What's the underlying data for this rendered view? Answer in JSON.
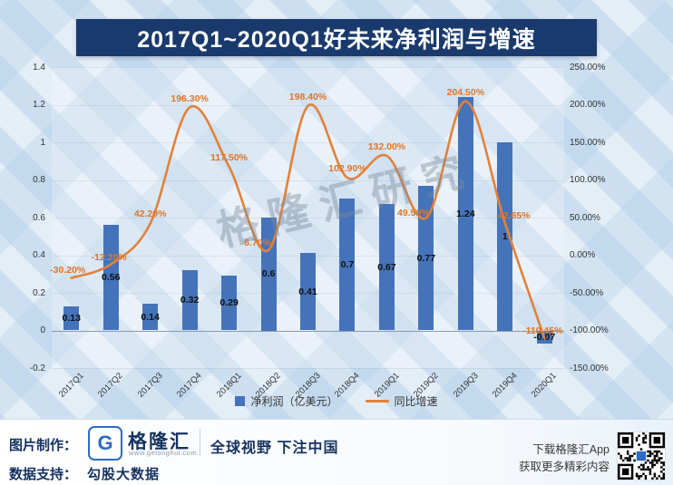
{
  "title": "2017Q1~2020Q1好未来净利润与增速",
  "watermark": "格隆汇研究",
  "chart_data": {
    "type": "combo",
    "categories": [
      "2017Q1",
      "2017Q2",
      "2017Q3",
      "2017Q4",
      "2018Q1",
      "2018Q2",
      "2018Q3",
      "2018Q4",
      "2019Q1",
      "2019Q2",
      "2019Q3",
      "2019Q4",
      "2020Q1"
    ],
    "series": [
      {
        "name": "净利润（亿美元）",
        "type": "bar",
        "axis": "left",
        "color": "#4573b9",
        "values": [
          0.13,
          0.56,
          0.14,
          0.32,
          0.29,
          0.6,
          0.41,
          0.7,
          0.67,
          0.77,
          1.24,
          1,
          -0.07
        ],
        "labels": [
          "0.13",
          "0.56",
          "0.14",
          "0.32",
          "0.29",
          "0.6",
          "0.41",
          "0.7",
          "0.67",
          "0.77",
          "1.24",
          "1",
          "-0.07"
        ]
      },
      {
        "name": "同比增速",
        "type": "line",
        "axis": "right",
        "color": "#e2813a",
        "values": [
          -30.2,
          -12.2,
          42.2,
          196.3,
          117.5,
          6.7,
          198.4,
          102.9,
          132.0,
          49.5,
          204.5,
          42.65,
          -110.45
        ],
        "labels": [
          "-30.20%",
          "-12.20%",
          "42.20%",
          "196.30%",
          "117.50%",
          "6.70%",
          "198.40%",
          "102.90%",
          "132.00%",
          "49.50%",
          "204.50%",
          "42.65%",
          "-110.45%"
        ]
      }
    ],
    "left_axis": {
      "min": -0.2,
      "max": 1.4,
      "ticks": [
        "1.4",
        "1.2",
        "1",
        "0.8",
        "0.6",
        "0.4",
        "0.2",
        "0",
        "-0.2"
      ]
    },
    "right_axis": {
      "min": -150,
      "max": 250,
      "ticks": [
        "250.00%",
        "200.00%",
        "150.00%",
        "100.00%",
        "50.00%",
        "0.00%",
        "-50.00%",
        "-100.00%",
        "-150.00%"
      ]
    },
    "legend_position": "bottom",
    "grid": "faint-horizontal"
  },
  "footer": {
    "made_by_label": "图片制作：",
    "logo_letter": "G",
    "logo_text": "格隆汇",
    "logo_url": "www.gelonghui.com",
    "slogan": "全球视野 下注中国",
    "data_support_label": "数据支持：",
    "data_support_value": "勾股大数据",
    "app_line1": "下载格隆汇App",
    "app_line2": "获取更多精彩内容"
  },
  "colors": {
    "bar": "#4573b9",
    "line": "#e2813a",
    "title_bg": "#1a3a6d",
    "background": "#d8e6f3"
  }
}
